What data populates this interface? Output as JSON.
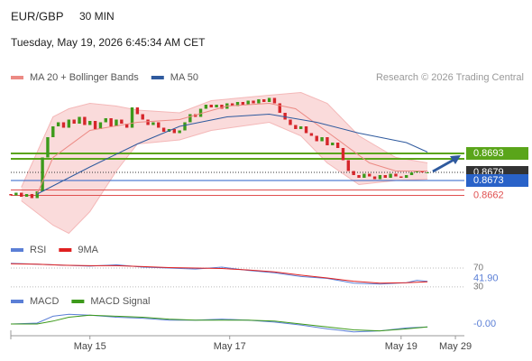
{
  "header": {
    "symbol": "EUR/GBP",
    "interval": "30 MIN",
    "datetime": "Tuesday, May 19, 2026 6:45:34 AM CET",
    "copyright": "Research © 2026 Trading Central"
  },
  "chart_data": [
    {
      "type": "candlestick",
      "up_color": "#3d9a1b",
      "down_color": "#d6262b",
      "xlim": [
        0,
        86
      ],
      "ylim": [
        0.8633,
        0.8743
      ],
      "open": [
        0.8663,
        0.8662,
        0.8664,
        0.8661,
        0.8663,
        0.866,
        0.8665,
        0.869,
        0.8705,
        0.8713,
        0.8716,
        0.8712,
        0.8718,
        0.8715,
        0.872,
        0.8714,
        0.8717,
        0.8711,
        0.8716,
        0.8719,
        0.8713,
        0.8718,
        0.8715,
        0.8712,
        0.8727,
        0.8722,
        0.8718,
        0.8714,
        0.8716,
        0.8712,
        0.8709,
        0.8711,
        0.8708,
        0.871,
        0.8716,
        0.8722,
        0.872,
        0.8726,
        0.8729,
        0.8727,
        0.8729,
        0.8726,
        0.873,
        0.8728,
        0.8731,
        0.8729,
        0.8732,
        0.873,
        0.8733,
        0.8731,
        0.8734,
        0.873,
        0.8723,
        0.8718,
        0.8714,
        0.8711,
        0.8713,
        0.8708,
        0.8706,
        0.8702,
        0.8705,
        0.8699,
        0.8701,
        0.8697,
        0.8688,
        0.868,
        0.8677,
        0.8675,
        0.8678,
        0.8676,
        0.8674,
        0.8677,
        0.8675,
        0.8678,
        0.8676,
        0.8675,
        0.8677,
        0.8679,
        0.868,
        0.8679
      ],
      "close": [
        0.8662,
        0.8664,
        0.8661,
        0.8663,
        0.866,
        0.8665,
        0.869,
        0.8705,
        0.8713,
        0.8716,
        0.8712,
        0.8718,
        0.8715,
        0.872,
        0.8714,
        0.8717,
        0.8711,
        0.8716,
        0.8719,
        0.8713,
        0.8718,
        0.8715,
        0.8712,
        0.8727,
        0.8722,
        0.8718,
        0.8714,
        0.8716,
        0.8712,
        0.8709,
        0.8711,
        0.8708,
        0.871,
        0.8716,
        0.8722,
        0.872,
        0.8726,
        0.8729,
        0.8727,
        0.8729,
        0.8726,
        0.873,
        0.8728,
        0.8731,
        0.8729,
        0.8732,
        0.873,
        0.8733,
        0.8731,
        0.8734,
        0.873,
        0.8723,
        0.8718,
        0.8714,
        0.8711,
        0.8713,
        0.8708,
        0.8706,
        0.8702,
        0.8705,
        0.8699,
        0.8701,
        0.8697,
        0.8688,
        0.868,
        0.8677,
        0.8675,
        0.8678,
        0.8676,
        0.8674,
        0.8677,
        0.8675,
        0.8678,
        0.8676,
        0.8675,
        0.8677,
        0.8679,
        0.868,
        0.8679,
        0.8679
      ],
      "bands": {
        "color": "#f8cfcf",
        "x": [
          2,
          8,
          11,
          15,
          20,
          24,
          32,
          38,
          49,
          55,
          60,
          66,
          73,
          79
        ],
        "upper": [
          0.8668,
          0.872,
          0.8726,
          0.873,
          0.8728,
          0.8725,
          0.8723,
          0.8732,
          0.8736,
          0.8738,
          0.873,
          0.8706,
          0.869,
          0.8686
        ],
        "lower": [
          0.8658,
          0.864,
          0.8634,
          0.865,
          0.868,
          0.87,
          0.8703,
          0.871,
          0.8716,
          0.8706,
          0.8686,
          0.867,
          0.8673,
          0.8674
        ]
      },
      "series": [
        {
          "name": "MA 20 + Bollinger Bands",
          "color": "#ec8a84",
          "x": [
            5,
            8,
            15,
            24,
            32,
            41,
            49,
            54,
            61,
            68,
            73,
            79
          ],
          "values": [
            0.8663,
            0.869,
            0.871,
            0.8716,
            0.8718,
            0.8728,
            0.873,
            0.8726,
            0.8706,
            0.8686,
            0.868,
            0.868
          ]
        },
        {
          "name": "MA 50",
          "color": "#2f5a9e",
          "x": [
            5,
            15,
            24,
            32,
            41,
            49,
            58,
            66,
            75,
            79
          ],
          "values": [
            0.8663,
            0.8683,
            0.87,
            0.8713,
            0.872,
            0.8722,
            0.8716,
            0.8708,
            0.8701,
            0.8694
          ]
        }
      ],
      "levels": [
        {
          "value": 0.8693,
          "color": "#5aa51a",
          "style": "box",
          "show_label": true
        },
        {
          "value": 0.8689,
          "color": "#5aa51a",
          "style": "line",
          "show_label": false
        },
        {
          "value": 0.8679,
          "color": "#333333",
          "style": "box",
          "show_label": true
        },
        {
          "value": 0.8673,
          "color": "#2962c8",
          "style": "box",
          "show_label": true
        },
        {
          "value": 0.8666,
          "color": "#e05050",
          "style": "text",
          "show_label": false
        },
        {
          "value": 0.8662,
          "color": "#e05050",
          "style": "text",
          "show_label": true
        }
      ]
    },
    {
      "type": "line",
      "xlim": [
        0,
        86
      ],
      "ylim": [
        26,
        93
      ],
      "yticks": [
        30,
        70
      ],
      "series": [
        {
          "name": "RSI",
          "color": "#5b7fd6",
          "x": [
            0,
            5,
            10,
            15,
            20,
            25,
            30,
            35,
            40,
            45,
            50,
            55,
            60,
            65,
            70,
            75,
            77,
            79
          ],
          "values": [
            80,
            78,
            76,
            74,
            77,
            72,
            70,
            68,
            72,
            65,
            60,
            52,
            48,
            38,
            36,
            39,
            44,
            41.9
          ],
          "value_labels": [
            null,
            null,
            null,
            null,
            null,
            null,
            null,
            null,
            null,
            null,
            null,
            null,
            null,
            null,
            null,
            null,
            null,
            "41.90"
          ]
        },
        {
          "name": "9MA",
          "color": "#e02020",
          "x": [
            0,
            5,
            10,
            15,
            20,
            25,
            30,
            35,
            40,
            45,
            50,
            55,
            60,
            65,
            70,
            75,
            79
          ],
          "values": [
            79,
            78,
            76,
            75,
            75,
            73,
            71,
            70,
            69,
            66,
            62,
            55,
            49,
            42,
            38,
            39,
            41
          ]
        }
      ]
    },
    {
      "type": "line",
      "xlim": [
        0,
        86
      ],
      "ylim": [
        -0.001,
        0.0015
      ],
      "xticks": [
        {
          "value": 15,
          "label": "May 15"
        },
        {
          "value": 41.5,
          "label": "May 17"
        },
        {
          "value": 74,
          "label": "May 19"
        },
        {
          "value": 84.3,
          "label": "May 29"
        }
      ],
      "series": [
        {
          "name": "MACD",
          "color": "#5b7fd6",
          "x": [
            0,
            5,
            8,
            11,
            15,
            20,
            25,
            30,
            35,
            40,
            45,
            50,
            55,
            60,
            65,
            70,
            75,
            79
          ],
          "values": [
            0.0002,
            0.0003,
            0.001,
            0.0012,
            0.0011,
            0.0009,
            0.0008,
            0.0006,
            0.0006,
            0.0007,
            0.0006,
            0.0004,
            0.0001,
            -0.0003,
            -0.0006,
            -0.0005,
            -0.0002,
            -0.0001
          ],
          "value_labels": [
            null,
            null,
            null,
            null,
            null,
            null,
            null,
            null,
            null,
            null,
            null,
            null,
            null,
            null,
            null,
            null,
            null,
            "-0.00"
          ]
        },
        {
          "name": "MACD Signal",
          "color": "#3d9a1b",
          "x": [
            0,
            5,
            8,
            11,
            15,
            20,
            25,
            30,
            35,
            40,
            45,
            50,
            55,
            60,
            65,
            70,
            75,
            79
          ],
          "values": [
            0.0002,
            0.0002,
            0.0005,
            0.0009,
            0.0011,
            0.001,
            0.0009,
            0.0007,
            0.0006,
            0.0006,
            0.0006,
            0.0005,
            0.0002,
            -0.0001,
            -0.0004,
            -0.0005,
            -0.0003,
            -0.0001
          ]
        }
      ]
    }
  ]
}
